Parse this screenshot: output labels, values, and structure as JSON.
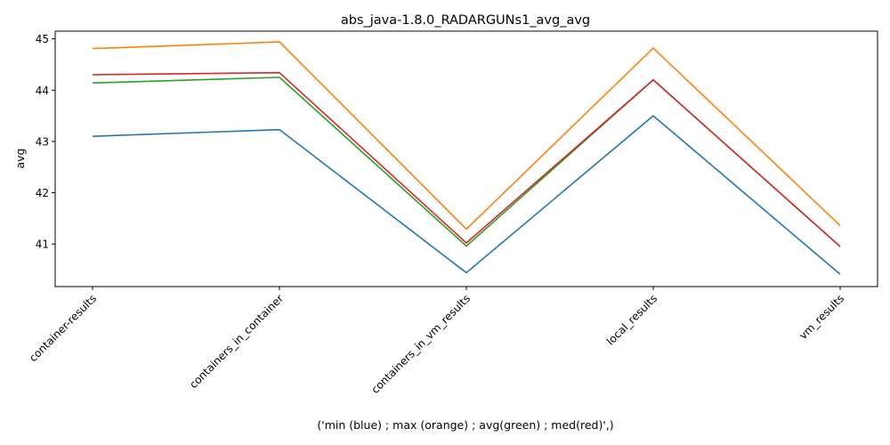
{
  "chart_data": {
    "type": "line",
    "title": "abs_java-1.8.0_RADARGUNs1_avg_avg",
    "xlabel": "('min (blue) ; max (orange) ; avg(green) ; med(red)',)",
    "ylabel": "avg",
    "categories": [
      "container-results",
      "containers_in_container",
      "containers_in_vm_results",
      "local_results",
      "vm_results"
    ],
    "ylim": [
      40.17,
      45.15
    ],
    "yticks": [
      41,
      42,
      43,
      44,
      45
    ],
    "grid": false,
    "legend": "none",
    "series": [
      {
        "color": "#1f77b4",
        "values": [
          43.1,
          43.23,
          40.44,
          43.5,
          40.41
        ]
      },
      {
        "color": "#ff7f0e",
        "values": [
          44.81,
          44.94,
          41.29,
          44.82,
          41.36
        ]
      },
      {
        "color": "#2ca02c",
        "values": [
          44.14,
          44.25,
          40.96,
          44.2,
          40.95
        ]
      },
      {
        "color": "#d62728",
        "values": [
          44.3,
          44.34,
          41.02,
          44.2,
          40.95
        ]
      }
    ]
  }
}
